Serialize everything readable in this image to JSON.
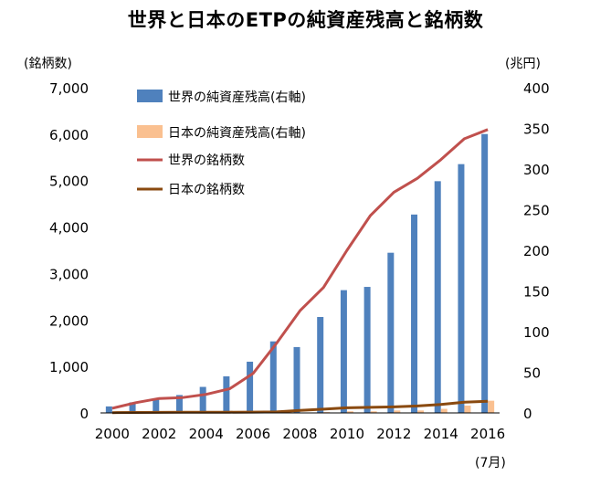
{
  "chart_data": {
    "type": "bar",
    "title": "世界と日本のETPの純資産残高と銘柄数",
    "y_left_label": "(銘柄数)",
    "y_right_label": "(兆円)",
    "x_note": "(7月)",
    "y_left_ticks": [
      "0",
      "1,000",
      "2,000",
      "3,000",
      "4,000",
      "5,000",
      "6,000",
      "7,000"
    ],
    "y_right_ticks": [
      "0",
      "50",
      "100",
      "150",
      "200",
      "250",
      "300",
      "350",
      "400"
    ],
    "x_tick_labels": [
      "2000",
      "2002",
      "2004",
      "2006",
      "2008",
      "2010",
      "2012",
      "2014",
      "2016"
    ],
    "y_left_range": [
      0,
      7000
    ],
    "y_right_range": [
      0,
      400
    ],
    "categories": [
      "2000",
      "2001",
      "2002",
      "2003",
      "2004",
      "2005",
      "2006",
      "2007",
      "2008",
      "2009",
      "2010",
      "2011",
      "2012",
      "2013",
      "2014",
      "2015",
      "2016"
    ],
    "series": [
      {
        "name": "世界の純資産残高(右軸)",
        "kind": "bar",
        "axis": "right",
        "color": "#4f81bd",
        "values": [
          8,
          13,
          18,
          22,
          32,
          45,
          63,
          88,
          81,
          118,
          151,
          155,
          197,
          244,
          285,
          306,
          343
        ]
      },
      {
        "name": "日本の純資産残高(右軸)",
        "kind": "bar",
        "axis": "right",
        "color": "#fac090",
        "values": [
          0,
          0,
          0,
          0,
          0,
          0,
          0,
          0,
          0,
          1,
          2,
          2,
          3,
          3,
          5,
          9,
          15
        ]
      },
      {
        "name": "世界の銘柄数",
        "kind": "line",
        "axis": "left",
        "color": "#c0504d",
        "values": [
          100,
          220,
          310,
          330,
          400,
          520,
          850,
          1500,
          2200,
          2700,
          3500,
          4250,
          4750,
          5050,
          5450,
          5900,
          6100
        ]
      },
      {
        "name": "日本の銘柄数",
        "kind": "line",
        "axis": "left",
        "color": "#8a4a10",
        "values": [
          5,
          10,
          12,
          14,
          15,
          15,
          18,
          22,
          55,
          80,
          110,
          120,
          130,
          150,
          180,
          230,
          250
        ]
      }
    ],
    "legend_position": "top-left"
  }
}
